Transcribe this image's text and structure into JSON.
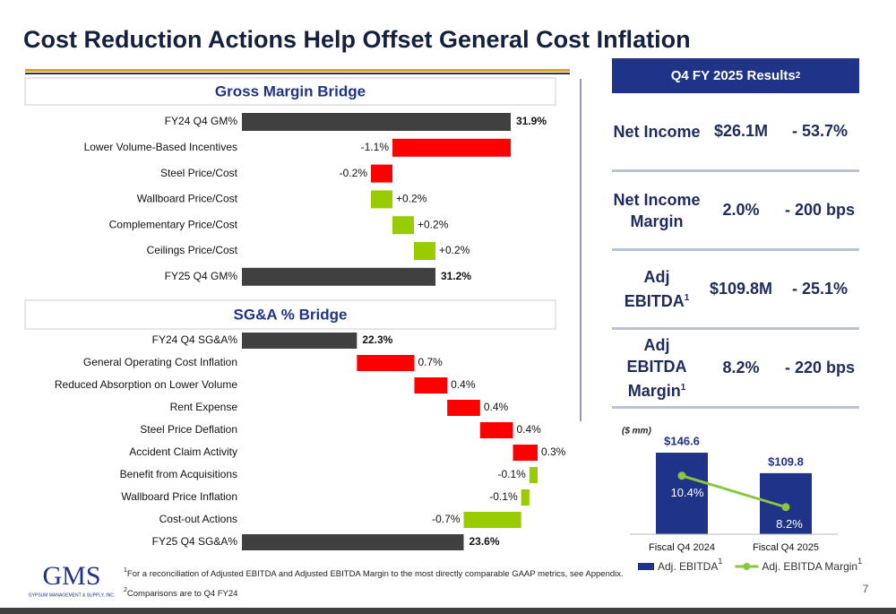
{
  "title": "Cost Reduction Actions Help Offset General Cost Inflation",
  "chart_data": [
    {
      "type": "waterfall",
      "title": "Gross Margin Bridge",
      "categories": [
        "FY24 Q4 GM%",
        "Lower Volume-Based Incentives",
        "Steel Price/Cost",
        "Wallboard Price/Cost",
        "Complementary Price/Cost",
        "Ceilings Price/Cost",
        "FY25 Q4 GM%"
      ],
      "values": [
        31.9,
        -1.1,
        -0.2,
        0.2,
        0.2,
        0.2,
        31.2
      ],
      "value_labels": [
        "31.9%",
        "-1.1%",
        "-0.2%",
        "+0.2%",
        "+0.2%",
        "+0.2%",
        "31.2%"
      ],
      "xlim": [
        29.4,
        32.15
      ],
      "total_color": "#404040",
      "increase_color": "#99cc00",
      "decrease_color": "#ff0000"
    },
    {
      "type": "waterfall",
      "title": "SG&A % Bridge",
      "categories": [
        "FY24 Q4 SG&A%",
        "General Operating Cost Inflation",
        "Reduced Absorption on Lower Volume",
        "Rent Expense",
        "Steel Price Deflation",
        "Accident Claim Activity",
        "Benefit from Acquisitions",
        "Wallboard Price Inflation",
        "Cost-out Actions",
        "FY25 Q4 SG&A%"
      ],
      "values": [
        22.3,
        0.7,
        0.4,
        0.4,
        0.4,
        0.3,
        -0.1,
        -0.1,
        -0.7,
        23.6
      ],
      "value_labels": [
        "22.3%",
        "0.7%",
        "0.4%",
        "0.4%",
        "0.4%",
        "0.3%",
        "-0.1%",
        "-0.1%",
        "-0.7%",
        "23.6%"
      ],
      "xlim": [
        20.9,
        24.5
      ],
      "total_color": "#404040",
      "increase_color": "#ff0000",
      "decrease_color": "#99cc00"
    },
    {
      "type": "combo",
      "units_label": "($ mm)",
      "categories": [
        "Fiscal Q4 2024",
        "Fiscal Q4 2025"
      ],
      "series": [
        {
          "name": "Adj. EBITDA",
          "note": "1",
          "type": "bar",
          "color": "#1f3388",
          "values": [
            146.6,
            109.8
          ],
          "value_labels": [
            "$146.6",
            "$109.8"
          ]
        },
        {
          "name": "Adj. EBITDA Margin",
          "note": "1",
          "type": "line",
          "axis": "y2",
          "color": "#8cc63f",
          "values": [
            10.4,
            8.2
          ],
          "value_labels": [
            "10.4%",
            "8.2%"
          ]
        }
      ],
      "ylim": [
        0,
        195
      ],
      "y2lim": [
        6.3,
        13.9
      ]
    }
  ],
  "results": {
    "title": "Q4 FY 2025 Results",
    "title_note": "2",
    "rows": [
      {
        "label": "Net Income",
        "value": "$26.1M",
        "change": "- 53.7%"
      },
      {
        "label": "Net Income Margin",
        "value": "2.0%",
        "change": "- 200 bps"
      },
      {
        "label": "Adj EBITDA",
        "note": "1",
        "value": "$109.8M",
        "change": "- 25.1%"
      },
      {
        "label": "Adj EBITDA Margin",
        "note": "1",
        "value": "8.2%",
        "change": "- 220 bps"
      }
    ]
  },
  "footnotes": [
    {
      "marker": "1",
      "text": "For a reconciliation of Adjusted EBITDA and Adjusted EBITDA Margin to the most directly comparable GAAP metrics, see Appendix."
    },
    {
      "marker": "2",
      "text": "Comparisons are to Q4 FY24"
    }
  ],
  "logo": {
    "name": "GMS",
    "tagline": "GYPSUM MANAGEMENT & SUPPLY, INC."
  },
  "page_number": "7"
}
